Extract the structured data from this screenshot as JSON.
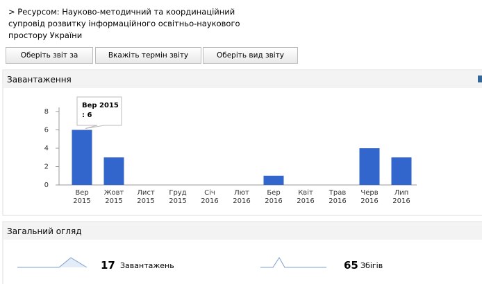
{
  "header": {
    "lines": [
      "> Ресурсом: Науково-методичний та координаційний",
      "супровід розвитку інформаційного освітньо-наукового",
      "простору України"
    ]
  },
  "buttons": [
    "Оберіть звіт за",
    "Вкажіть термін звіту",
    "Оберіть вид звіту"
  ],
  "downloads_panel": {
    "title": "Завантаження"
  },
  "chart_data": {
    "type": "bar",
    "categories": [
      "Вер 2015",
      "Жовт 2015",
      "Лист 2015",
      "Груд 2015",
      "Січ 2016",
      "Лют 2016",
      "Бер 2016",
      "Квіт 2016",
      "Трав 2016",
      "Черв 2016",
      "Лип 2016"
    ],
    "values": [
      6,
      3,
      0,
      0,
      0,
      0,
      1,
      0,
      0,
      4,
      3
    ],
    "color": "#3366cc",
    "ylim": [
      0,
      8
    ],
    "yticks": [
      0,
      2,
      4,
      6,
      8
    ],
    "tooltip": {
      "text": ": 6"
    }
  },
  "overview_panel": {
    "title": "Загальний огляд",
    "items": [
      {
        "value": 17,
        "label": "Завантажень"
      },
      {
        "value": 65,
        "label": "Збігів"
      }
    ]
  }
}
